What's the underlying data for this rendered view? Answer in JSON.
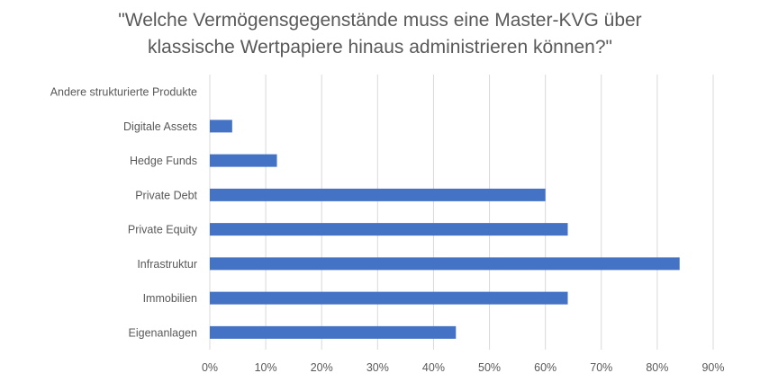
{
  "chart_data": {
    "type": "bar",
    "orientation": "horizontal",
    "title_lines": [
      "\"Welche Vermögensgegenstände muss eine Master-KVG über",
      "klassische Wertpapiere hinaus administrieren können?\""
    ],
    "categories": [
      "Andere strukturierte Produkte",
      "Digitale Assets",
      "Hedge Funds",
      "Private Debt",
      "Private Equity",
      "Infrastruktur",
      "Immobilien",
      "Eigenanlagen"
    ],
    "values": [
      0,
      4,
      12,
      60,
      64,
      84,
      64,
      44
    ],
    "xlim": [
      0,
      90
    ],
    "xticks": [
      "0%",
      "10%",
      "20%",
      "30%",
      "40%",
      "50%",
      "60%",
      "70%",
      "80%",
      "90%"
    ],
    "xlabel": "",
    "ylabel": "",
    "grid": "vertical",
    "legend": "none",
    "bar_color": "#4472C4",
    "grid_color": "#D9D9D9"
  }
}
